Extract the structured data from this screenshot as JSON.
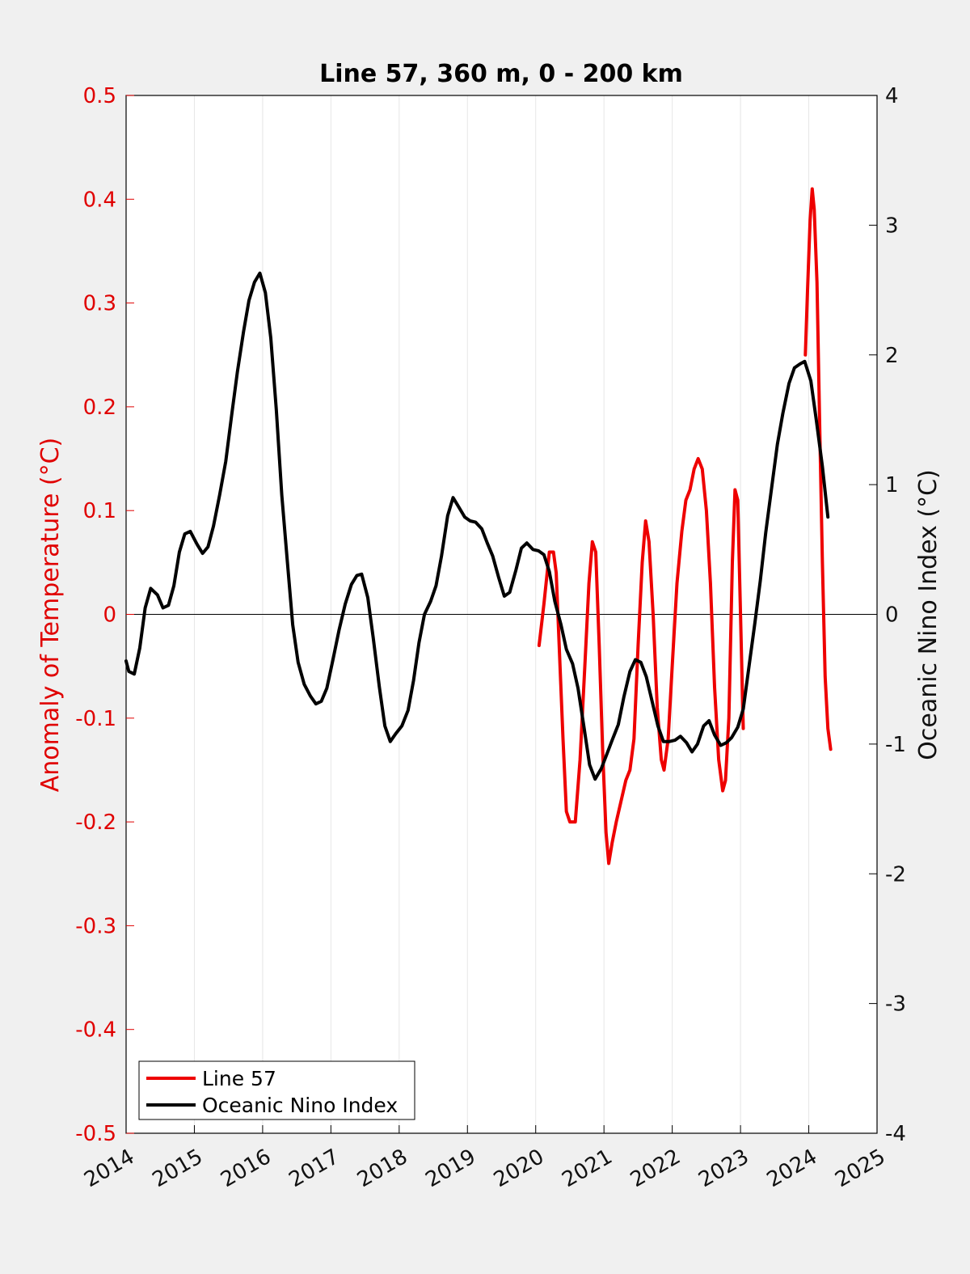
{
  "chart_data": {
    "type": "line",
    "title": "Line 57, 360 m, 0 - 200 km",
    "ylabel": "Anomaly of Temperature (°C)",
    "y2label": "Oceanic Nino Index (°C)",
    "xlim": [
      2014,
      2025
    ],
    "ylim": [
      -0.5,
      0.5
    ],
    "y2lim": [
      -4,
      4
    ],
    "x_ticks": [
      "2014",
      "2015",
      "2016",
      "2017",
      "2018",
      "2019",
      "2020",
      "2021",
      "2022",
      "2023",
      "2024",
      "2025"
    ],
    "y_ticks": [
      "-0.5",
      "-0.4",
      "-0.3",
      "-0.2",
      "-0.1",
      "0",
      "0.1",
      "0.2",
      "0.3",
      "0.4",
      "0.5"
    ],
    "y2_ticks": [
      "-4",
      "-3",
      "-2",
      "-1",
      "0",
      "1",
      "2",
      "3",
      "4"
    ],
    "grid": "vertical",
    "zero_line": true,
    "legend_position": "bottom-left",
    "series": [
      {
        "name": "Line 57",
        "axis": "left",
        "color": "#ee0000",
        "segments": [
          [
            [
              2020.05,
              -0.03
            ],
            [
              2020.12,
              0.01
            ],
            [
              2020.2,
              0.06
            ],
            [
              2020.26,
              0.06
            ],
            [
              2020.3,
              0.04
            ],
            [
              2020.35,
              -0.04
            ],
            [
              2020.4,
              -0.12
            ],
            [
              2020.45,
              -0.19
            ],
            [
              2020.5,
              -0.2
            ],
            [
              2020.55,
              -0.2
            ],
            [
              2020.58,
              -0.2
            ],
            [
              2020.65,
              -0.14
            ],
            [
              2020.72,
              -0.05
            ],
            [
              2020.78,
              0.03
            ],
            [
              2020.83,
              0.07
            ],
            [
              2020.88,
              0.06
            ],
            [
              2020.93,
              -0.03
            ],
            [
              2020.98,
              -0.13
            ],
            [
              2021.03,
              -0.21
            ],
            [
              2021.07,
              -0.24
            ],
            [
              2021.12,
              -0.22
            ],
            [
              2021.18,
              -0.2
            ],
            [
              2021.25,
              -0.18
            ],
            [
              2021.32,
              -0.16
            ],
            [
              2021.38,
              -0.15
            ],
            [
              2021.44,
              -0.12
            ],
            [
              2021.5,
              -0.03
            ],
            [
              2021.56,
              0.05
            ],
            [
              2021.61,
              0.09
            ],
            [
              2021.66,
              0.07
            ],
            [
              2021.72,
              0.0
            ],
            [
              2021.78,
              -0.09
            ],
            [
              2021.84,
              -0.14
            ],
            [
              2021.88,
              -0.15
            ],
            [
              2021.94,
              -0.12
            ],
            [
              2022.0,
              -0.05
            ],
            [
              2022.07,
              0.03
            ],
            [
              2022.14,
              0.08
            ],
            [
              2022.2,
              0.11
            ],
            [
              2022.26,
              0.12
            ],
            [
              2022.32,
              0.14
            ],
            [
              2022.38,
              0.15
            ],
            [
              2022.44,
              0.14
            ],
            [
              2022.5,
              0.1
            ],
            [
              2022.56,
              0.03
            ],
            [
              2022.62,
              -0.07
            ],
            [
              2022.68,
              -0.14
            ],
            [
              2022.74,
              -0.17
            ],
            [
              2022.78,
              -0.16
            ],
            [
              2022.83,
              -0.1
            ],
            [
              2022.88,
              0.05
            ],
            [
              2022.92,
              0.12
            ],
            [
              2022.96,
              0.11
            ],
            [
              2023.0,
              0.0
            ],
            [
              2023.04,
              -0.11
            ]
          ],
          [
            [
              2023.95,
              0.25
            ],
            [
              2023.98,
              0.31
            ],
            [
              2024.02,
              0.38
            ],
            [
              2024.05,
              0.41
            ],
            [
              2024.08,
              0.39
            ],
            [
              2024.12,
              0.32
            ],
            [
              2024.16,
              0.18
            ],
            [
              2024.2,
              0.05
            ],
            [
              2024.24,
              -0.06
            ],
            [
              2024.28,
              -0.11
            ],
            [
              2024.32,
              -0.13
            ]
          ]
        ]
      },
      {
        "name": "Oceanic Nino Index",
        "axis": "right",
        "color": "#000000",
        "points": [
          [
            2014.0,
            -0.36
          ],
          [
            2014.04,
            -0.44
          ],
          [
            2014.12,
            -0.46
          ],
          [
            2014.2,
            -0.26
          ],
          [
            2014.28,
            0.05
          ],
          [
            2014.36,
            0.2
          ],
          [
            2014.46,
            0.15
          ],
          [
            2014.54,
            0.05
          ],
          [
            2014.62,
            0.07
          ],
          [
            2014.7,
            0.22
          ],
          [
            2014.78,
            0.48
          ],
          [
            2014.86,
            0.62
          ],
          [
            2014.94,
            0.64
          ],
          [
            2015.04,
            0.54
          ],
          [
            2015.12,
            0.47
          ],
          [
            2015.2,
            0.52
          ],
          [
            2015.28,
            0.68
          ],
          [
            2015.37,
            0.92
          ],
          [
            2015.46,
            1.18
          ],
          [
            2015.55,
            1.55
          ],
          [
            2015.63,
            1.87
          ],
          [
            2015.72,
            2.18
          ],
          [
            2015.8,
            2.42
          ],
          [
            2015.88,
            2.56
          ],
          [
            2015.96,
            2.63
          ],
          [
            2016.04,
            2.48
          ],
          [
            2016.12,
            2.13
          ],
          [
            2016.2,
            1.58
          ],
          [
            2016.28,
            0.92
          ],
          [
            2016.36,
            0.42
          ],
          [
            2016.44,
            -0.08
          ],
          [
            2016.52,
            -0.37
          ],
          [
            2016.61,
            -0.54
          ],
          [
            2016.7,
            -0.63
          ],
          [
            2016.78,
            -0.69
          ],
          [
            2016.86,
            -0.67
          ],
          [
            2016.94,
            -0.57
          ],
          [
            2017.03,
            -0.35
          ],
          [
            2017.12,
            -0.12
          ],
          [
            2017.21,
            0.08
          ],
          [
            2017.3,
            0.23
          ],
          [
            2017.38,
            0.3
          ],
          [
            2017.45,
            0.31
          ],
          [
            2017.54,
            0.13
          ],
          [
            2017.62,
            -0.18
          ],
          [
            2017.71,
            -0.56
          ],
          [
            2017.79,
            -0.86
          ],
          [
            2017.87,
            -0.98
          ],
          [
            2017.95,
            -0.92
          ],
          [
            2018.04,
            -0.86
          ],
          [
            2018.13,
            -0.74
          ],
          [
            2018.21,
            -0.51
          ],
          [
            2018.29,
            -0.22
          ],
          [
            2018.37,
            0.0
          ],
          [
            2018.46,
            0.1
          ],
          [
            2018.54,
            0.22
          ],
          [
            2018.62,
            0.45
          ],
          [
            2018.71,
            0.76
          ],
          [
            2018.79,
            0.9
          ],
          [
            2018.87,
            0.83
          ],
          [
            2018.96,
            0.75
          ],
          [
            2019.04,
            0.72
          ],
          [
            2019.12,
            0.71
          ],
          [
            2019.21,
            0.66
          ],
          [
            2019.29,
            0.55
          ],
          [
            2019.37,
            0.45
          ],
          [
            2019.46,
            0.28
          ],
          [
            2019.54,
            0.14
          ],
          [
            2019.62,
            0.17
          ],
          [
            2019.71,
            0.34
          ],
          [
            2019.79,
            0.51
          ],
          [
            2019.87,
            0.55
          ],
          [
            2019.96,
            0.5
          ],
          [
            2020.04,
            0.49
          ],
          [
            2020.12,
            0.46
          ],
          [
            2020.2,
            0.33
          ],
          [
            2020.28,
            0.1
          ],
          [
            2020.37,
            -0.08
          ],
          [
            2020.45,
            -0.27
          ],
          [
            2020.54,
            -0.38
          ],
          [
            2020.62,
            -0.57
          ],
          [
            2020.71,
            -0.88
          ],
          [
            2020.79,
            -1.16
          ],
          [
            2020.87,
            -1.27
          ],
          [
            2020.96,
            -1.19
          ],
          [
            2021.04,
            -1.08
          ],
          [
            2021.12,
            -0.97
          ],
          [
            2021.21,
            -0.85
          ],
          [
            2021.29,
            -0.64
          ],
          [
            2021.38,
            -0.44
          ],
          [
            2021.46,
            -0.35
          ],
          [
            2021.54,
            -0.37
          ],
          [
            2021.62,
            -0.48
          ],
          [
            2021.71,
            -0.68
          ],
          [
            2021.79,
            -0.86
          ],
          [
            2021.87,
            -0.98
          ],
          [
            2021.96,
            -0.98
          ],
          [
            2022.04,
            -0.97
          ],
          [
            2022.12,
            -0.94
          ],
          [
            2022.21,
            -0.99
          ],
          [
            2022.29,
            -1.06
          ],
          [
            2022.37,
            -1.0
          ],
          [
            2022.46,
            -0.86
          ],
          [
            2022.54,
            -0.82
          ],
          [
            2022.62,
            -0.93
          ],
          [
            2022.71,
            -1.01
          ],
          [
            2022.79,
            -0.99
          ],
          [
            2022.87,
            -0.95
          ],
          [
            2022.96,
            -0.87
          ],
          [
            2023.04,
            -0.73
          ],
          [
            2023.12,
            -0.42
          ],
          [
            2023.21,
            -0.07
          ],
          [
            2023.29,
            0.26
          ],
          [
            2023.37,
            0.63
          ],
          [
            2023.46,
            0.99
          ],
          [
            2023.54,
            1.31
          ],
          [
            2023.62,
            1.55
          ],
          [
            2023.71,
            1.78
          ],
          [
            2023.79,
            1.9
          ],
          [
            2023.87,
            1.93
          ],
          [
            2023.94,
            1.95
          ],
          [
            2024.03,
            1.8
          ],
          [
            2024.11,
            1.5
          ],
          [
            2024.2,
            1.14
          ],
          [
            2024.28,
            0.75
          ]
        ]
      }
    ]
  }
}
